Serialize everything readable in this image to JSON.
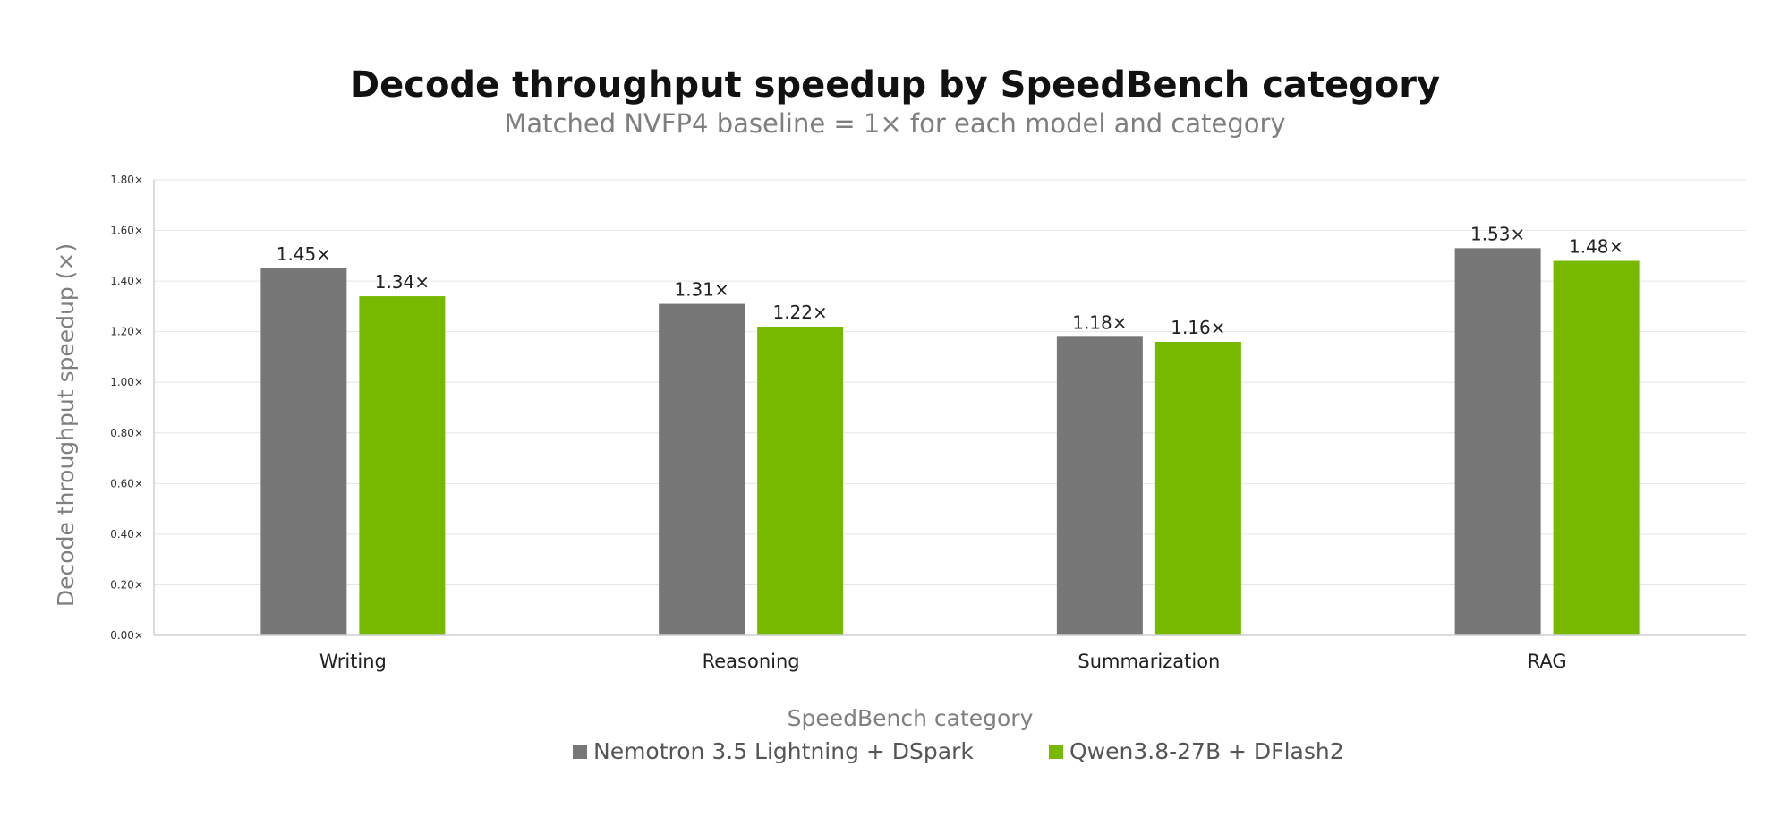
{
  "chart_data": {
    "type": "bar",
    "title": "Decode throughput speedup by SpeedBench category",
    "subtitle": "Matched NVFP4 baseline = 1× for each model and category",
    "xlabel": "SpeedBench category",
    "ylabel": "Decode throughput speedup (×)",
    "categories": [
      "Writing",
      "Reasoning",
      "Summarization",
      "RAG"
    ],
    "series": [
      {
        "name": "Nemotron 3.5 Lightning + DSpark",
        "color": "#777777",
        "values": [
          1.45,
          1.31,
          1.18,
          1.53
        ],
        "labels": [
          "1.45×",
          "1.31×",
          "1.18×",
          "1.53×"
        ]
      },
      {
        "name": "Qwen3.8-27B + DFlash2",
        "color": "#76b900",
        "values": [
          1.34,
          1.22,
          1.16,
          1.48
        ],
        "labels": [
          "1.34×",
          "1.22×",
          "1.16×",
          "1.48×"
        ]
      }
    ],
    "ylim": [
      0,
      1.8
    ],
    "yticks": [
      0,
      0.2,
      0.4,
      0.6,
      0.8,
      1.0,
      1.2,
      1.4,
      1.6,
      1.8
    ],
    "ytick_labels": [
      "0.00×",
      "0.20×",
      "0.40×",
      "0.60×",
      "0.80×",
      "1.00×",
      "1.20×",
      "1.40×",
      "1.60×",
      "1.80×"
    ],
    "grid": true,
    "legend": "bottom-center"
  }
}
